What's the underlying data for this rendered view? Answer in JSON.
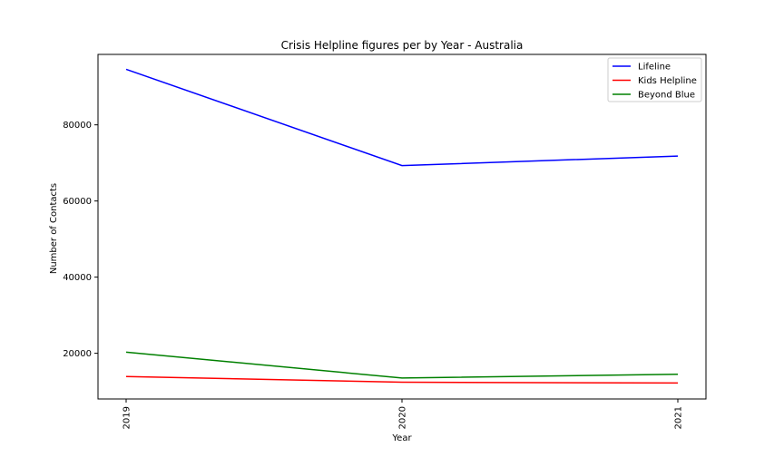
{
  "chart_data": {
    "type": "line",
    "title": "Crisis Helpline figures per by Year - Australia",
    "xlabel": "Year",
    "ylabel": "Number of Contacts",
    "categories": [
      "2019",
      "2020",
      "2021"
    ],
    "ylim": [
      8000,
      98500
    ],
    "yticks": [
      20000,
      40000,
      60000,
      80000
    ],
    "ytick_labels": [
      "20000",
      "40000",
      "60000",
      "80000"
    ],
    "legend_position": "top-right",
    "grid": false,
    "series": [
      {
        "name": "Lifeline",
        "color": "#0000ff",
        "values": [
          94600,
          69300,
          71800
        ]
      },
      {
        "name": "Kids Helpline",
        "color": "#ff0000",
        "values": [
          13900,
          12400,
          12200
        ]
      },
      {
        "name": "Beyond Blue",
        "color": "#008000",
        "values": [
          20300,
          13500,
          14500
        ]
      }
    ]
  }
}
